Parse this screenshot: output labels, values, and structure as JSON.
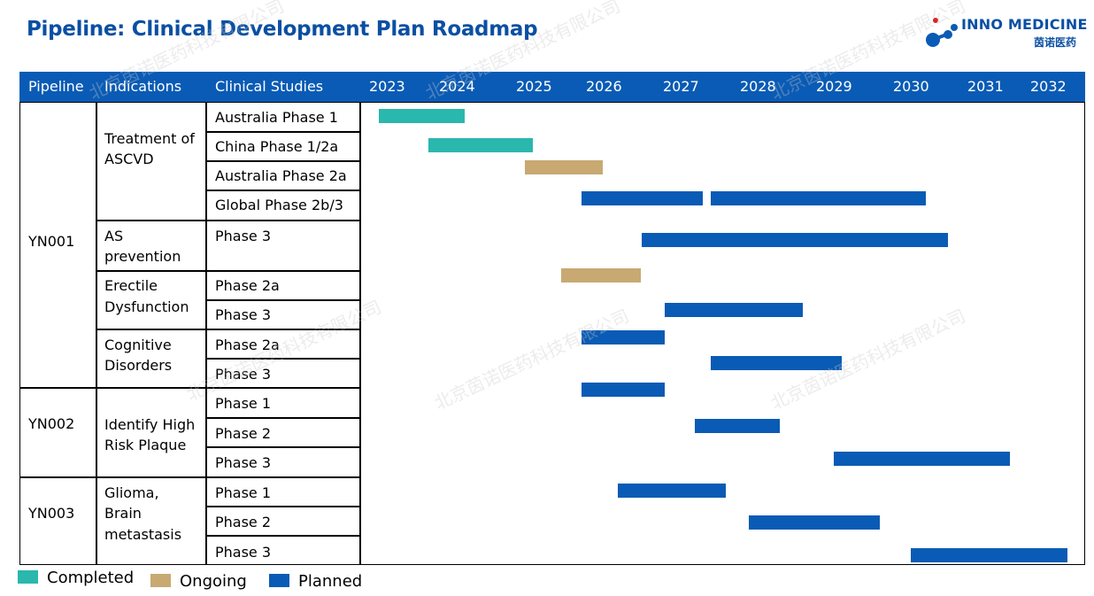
{
  "title": "Pipeline: Clinical Development Plan Roadmap",
  "logo": {
    "name": "INNO MEDICINE",
    "sub": "茵诺医药"
  },
  "watermark": "北京茵诺医药科技有限公司",
  "colors": {
    "completed": "#2ab7ae",
    "ongoing": "#c8a972",
    "planned": "#0a5bb5",
    "header": "#0a5bb5",
    "title": "#0a4fa3"
  },
  "headers": {
    "pipeline": "Pipeline",
    "indications": "Indications",
    "studies": "Clinical Studies"
  },
  "years": [
    "2023",
    "2024",
    "2025",
    "2026",
    "2027",
    "2028",
    "2029",
    "2030",
    "2031",
    "2032"
  ],
  "pipelines": [
    {
      "name": "YN001"
    },
    {
      "name": "YN002"
    },
    {
      "name": "YN003"
    }
  ],
  "indications": [
    {
      "line1": "Treatment of",
      "line2": "ASCVD",
      "line3": ""
    },
    {
      "line1": "AS",
      "line2": "prevention",
      "line3": ""
    },
    {
      "line1": "Erectile",
      "line2": "Dysfunction",
      "line3": ""
    },
    {
      "line1": "Cognitive",
      "line2": "Disorders",
      "line3": ""
    },
    {
      "line1": "Identify High",
      "line2": "Risk Plaque",
      "line3": ""
    },
    {
      "line1": "Glioma,",
      "line2": "Brain",
      "line3": "metastasis"
    }
  ],
  "studies": [
    "Australia Phase 1",
    "China Phase 1/2a",
    "Australia Phase 2a",
    "Global Phase 2b/3",
    "Phase 3",
    "Phase 2a",
    "Phase 3",
    "Phase 2a",
    "Phase 3",
    "Phase 1",
    "Phase 2",
    "Phase 3",
    "Phase 1",
    "Phase 2",
    "Phase 3"
  ],
  "legend": [
    {
      "label": "Completed",
      "status": "completed"
    },
    {
      "label": "Ongoing",
      "status": "ongoing"
    },
    {
      "label": "Planned",
      "status": "planned"
    }
  ],
  "chart_data": {
    "type": "gantt",
    "title": "Pipeline: Clinical Development Plan Roadmap",
    "x_range": [
      2023,
      2032
    ],
    "tasks": [
      {
        "pipeline": "YN001",
        "indication": "Treatment of ASCVD",
        "study": "Australia Phase 1",
        "start": 2022.9,
        "end": 2024.1,
        "status": "completed"
      },
      {
        "pipeline": "YN001",
        "indication": "Treatment of ASCVD",
        "study": "China Phase 1/2a",
        "start": 2023.6,
        "end": 2025.0,
        "status": "completed"
      },
      {
        "pipeline": "YN001",
        "indication": "Treatment of ASCVD",
        "study": "Australia Phase 2a",
        "start": 2024.9,
        "end": 2026.0,
        "status": "ongoing"
      },
      {
        "pipeline": "YN001",
        "indication": "Treatment of ASCVD",
        "study": "Global Phase 2b/3",
        "start": 2025.7,
        "end": 2027.3,
        "status": "planned"
      },
      {
        "pipeline": "YN001",
        "indication": "Treatment of ASCVD",
        "study": "Global Phase 2b/3",
        "start": 2027.4,
        "end": 2030.2,
        "status": "planned"
      },
      {
        "pipeline": "YN001",
        "indication": "AS prevention",
        "study": "Phase 3",
        "start": 2026.5,
        "end": 2030.5,
        "status": "planned"
      },
      {
        "pipeline": "YN001",
        "indication": "Erectile Dysfunction",
        "study": "Phase 2a",
        "start": 2025.4,
        "end": 2026.5,
        "status": "ongoing"
      },
      {
        "pipeline": "YN001",
        "indication": "Erectile Dysfunction",
        "study": "Phase 3",
        "start": 2026.8,
        "end": 2028.6,
        "status": "planned"
      },
      {
        "pipeline": "YN001",
        "indication": "Cognitive Disorders",
        "study": "Phase 2a",
        "start": 2025.7,
        "end": 2026.8,
        "status": "planned"
      },
      {
        "pipeline": "YN001",
        "indication": "Cognitive Disorders",
        "study": "Phase 3",
        "start": 2027.4,
        "end": 2029.1,
        "status": "planned"
      },
      {
        "pipeline": "YN002",
        "indication": "Identify High Risk Plaque",
        "study": "Phase 1",
        "start": 2025.7,
        "end": 2026.8,
        "status": "planned"
      },
      {
        "pipeline": "YN002",
        "indication": "Identify High Risk Plaque",
        "study": "Phase 2",
        "start": 2027.2,
        "end": 2028.3,
        "status": "planned"
      },
      {
        "pipeline": "YN002",
        "indication": "Identify High Risk Plaque",
        "study": "Phase 3",
        "start": 2029.0,
        "end": 2031.4,
        "status": "planned"
      },
      {
        "pipeline": "YN003",
        "indication": "Glioma, Brain metastasis",
        "study": "Phase 1",
        "start": 2026.2,
        "end": 2027.6,
        "status": "planned"
      },
      {
        "pipeline": "YN003",
        "indication": "Glioma, Brain metastasis",
        "study": "Phase 2",
        "start": 2027.9,
        "end": 2029.6,
        "status": "planned"
      },
      {
        "pipeline": "YN003",
        "indication": "Glioma, Brain metastasis",
        "study": "Phase 3",
        "start": 2030.0,
        "end": 2032.3,
        "status": "planned"
      }
    ]
  }
}
